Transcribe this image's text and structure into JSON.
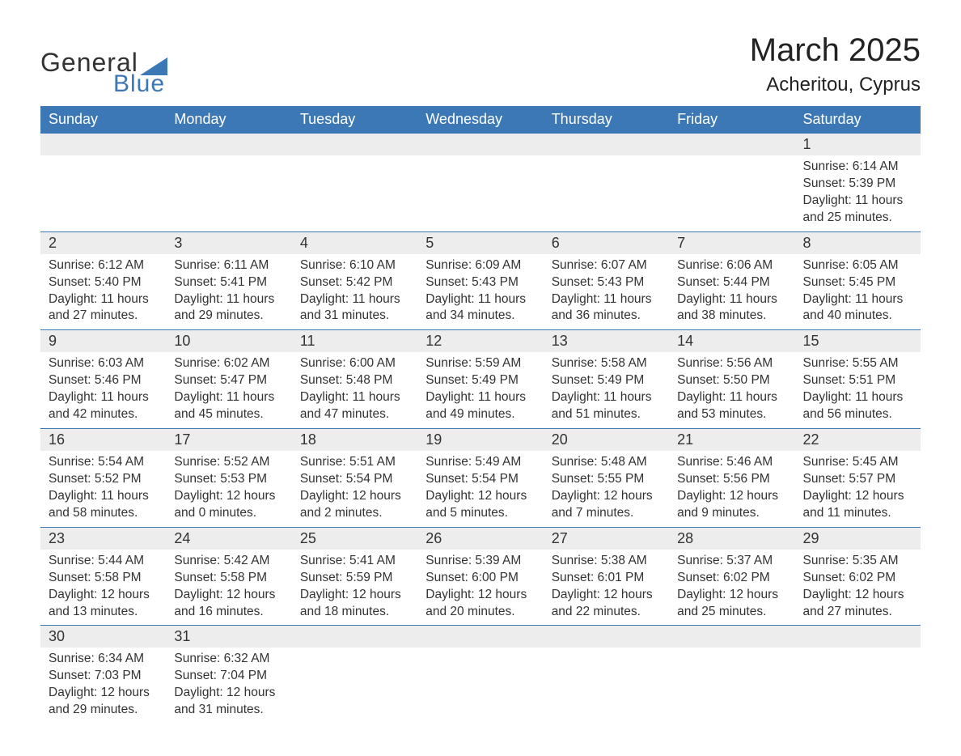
{
  "logo": {
    "word1": "General",
    "word2": "Blue"
  },
  "title": "March 2025",
  "location": "Acheritou, Cyprus",
  "colors": {
    "header_bg": "#3d78b6",
    "header_text": "#ffffff",
    "row_border": "#3d78b6",
    "daynum_bg": "#ededed",
    "text": "#333333",
    "logo_blue": "#3d78b6",
    "background": "#ffffff"
  },
  "typography": {
    "title_fontsize": 40,
    "location_fontsize": 24,
    "header_fontsize": 18,
    "daynum_fontsize": 18,
    "body_fontsize": 15.5,
    "logo_fontsize": 32
  },
  "weekday_headers": [
    "Sunday",
    "Monday",
    "Tuesday",
    "Wednesday",
    "Thursday",
    "Friday",
    "Saturday"
  ],
  "weeks": [
    [
      {
        "blank": true
      },
      {
        "blank": true
      },
      {
        "blank": true
      },
      {
        "blank": true
      },
      {
        "blank": true
      },
      {
        "blank": true
      },
      {
        "day": "1",
        "sunrise": "Sunrise: 6:14 AM",
        "sunset": "Sunset: 5:39 PM",
        "daylight1": "Daylight: 11 hours",
        "daylight2": "and 25 minutes."
      }
    ],
    [
      {
        "day": "2",
        "sunrise": "Sunrise: 6:12 AM",
        "sunset": "Sunset: 5:40 PM",
        "daylight1": "Daylight: 11 hours",
        "daylight2": "and 27 minutes."
      },
      {
        "day": "3",
        "sunrise": "Sunrise: 6:11 AM",
        "sunset": "Sunset: 5:41 PM",
        "daylight1": "Daylight: 11 hours",
        "daylight2": "and 29 minutes."
      },
      {
        "day": "4",
        "sunrise": "Sunrise: 6:10 AM",
        "sunset": "Sunset: 5:42 PM",
        "daylight1": "Daylight: 11 hours",
        "daylight2": "and 31 minutes."
      },
      {
        "day": "5",
        "sunrise": "Sunrise: 6:09 AM",
        "sunset": "Sunset: 5:43 PM",
        "daylight1": "Daylight: 11 hours",
        "daylight2": "and 34 minutes."
      },
      {
        "day": "6",
        "sunrise": "Sunrise: 6:07 AM",
        "sunset": "Sunset: 5:43 PM",
        "daylight1": "Daylight: 11 hours",
        "daylight2": "and 36 minutes."
      },
      {
        "day": "7",
        "sunrise": "Sunrise: 6:06 AM",
        "sunset": "Sunset: 5:44 PM",
        "daylight1": "Daylight: 11 hours",
        "daylight2": "and 38 minutes."
      },
      {
        "day": "8",
        "sunrise": "Sunrise: 6:05 AM",
        "sunset": "Sunset: 5:45 PM",
        "daylight1": "Daylight: 11 hours",
        "daylight2": "and 40 minutes."
      }
    ],
    [
      {
        "day": "9",
        "sunrise": "Sunrise: 6:03 AM",
        "sunset": "Sunset: 5:46 PM",
        "daylight1": "Daylight: 11 hours",
        "daylight2": "and 42 minutes."
      },
      {
        "day": "10",
        "sunrise": "Sunrise: 6:02 AM",
        "sunset": "Sunset: 5:47 PM",
        "daylight1": "Daylight: 11 hours",
        "daylight2": "and 45 minutes."
      },
      {
        "day": "11",
        "sunrise": "Sunrise: 6:00 AM",
        "sunset": "Sunset: 5:48 PM",
        "daylight1": "Daylight: 11 hours",
        "daylight2": "and 47 minutes."
      },
      {
        "day": "12",
        "sunrise": "Sunrise: 5:59 AM",
        "sunset": "Sunset: 5:49 PM",
        "daylight1": "Daylight: 11 hours",
        "daylight2": "and 49 minutes."
      },
      {
        "day": "13",
        "sunrise": "Sunrise: 5:58 AM",
        "sunset": "Sunset: 5:49 PM",
        "daylight1": "Daylight: 11 hours",
        "daylight2": "and 51 minutes."
      },
      {
        "day": "14",
        "sunrise": "Sunrise: 5:56 AM",
        "sunset": "Sunset: 5:50 PM",
        "daylight1": "Daylight: 11 hours",
        "daylight2": "and 53 minutes."
      },
      {
        "day": "15",
        "sunrise": "Sunrise: 5:55 AM",
        "sunset": "Sunset: 5:51 PM",
        "daylight1": "Daylight: 11 hours",
        "daylight2": "and 56 minutes."
      }
    ],
    [
      {
        "day": "16",
        "sunrise": "Sunrise: 5:54 AM",
        "sunset": "Sunset: 5:52 PM",
        "daylight1": "Daylight: 11 hours",
        "daylight2": "and 58 minutes."
      },
      {
        "day": "17",
        "sunrise": "Sunrise: 5:52 AM",
        "sunset": "Sunset: 5:53 PM",
        "daylight1": "Daylight: 12 hours",
        "daylight2": "and 0 minutes."
      },
      {
        "day": "18",
        "sunrise": "Sunrise: 5:51 AM",
        "sunset": "Sunset: 5:54 PM",
        "daylight1": "Daylight: 12 hours",
        "daylight2": "and 2 minutes."
      },
      {
        "day": "19",
        "sunrise": "Sunrise: 5:49 AM",
        "sunset": "Sunset: 5:54 PM",
        "daylight1": "Daylight: 12 hours",
        "daylight2": "and 5 minutes."
      },
      {
        "day": "20",
        "sunrise": "Sunrise: 5:48 AM",
        "sunset": "Sunset: 5:55 PM",
        "daylight1": "Daylight: 12 hours",
        "daylight2": "and 7 minutes."
      },
      {
        "day": "21",
        "sunrise": "Sunrise: 5:46 AM",
        "sunset": "Sunset: 5:56 PM",
        "daylight1": "Daylight: 12 hours",
        "daylight2": "and 9 minutes."
      },
      {
        "day": "22",
        "sunrise": "Sunrise: 5:45 AM",
        "sunset": "Sunset: 5:57 PM",
        "daylight1": "Daylight: 12 hours",
        "daylight2": "and 11 minutes."
      }
    ],
    [
      {
        "day": "23",
        "sunrise": "Sunrise: 5:44 AM",
        "sunset": "Sunset: 5:58 PM",
        "daylight1": "Daylight: 12 hours",
        "daylight2": "and 13 minutes."
      },
      {
        "day": "24",
        "sunrise": "Sunrise: 5:42 AM",
        "sunset": "Sunset: 5:58 PM",
        "daylight1": "Daylight: 12 hours",
        "daylight2": "and 16 minutes."
      },
      {
        "day": "25",
        "sunrise": "Sunrise: 5:41 AM",
        "sunset": "Sunset: 5:59 PM",
        "daylight1": "Daylight: 12 hours",
        "daylight2": "and 18 minutes."
      },
      {
        "day": "26",
        "sunrise": "Sunrise: 5:39 AM",
        "sunset": "Sunset: 6:00 PM",
        "daylight1": "Daylight: 12 hours",
        "daylight2": "and 20 minutes."
      },
      {
        "day": "27",
        "sunrise": "Sunrise: 5:38 AM",
        "sunset": "Sunset: 6:01 PM",
        "daylight1": "Daylight: 12 hours",
        "daylight2": "and 22 minutes."
      },
      {
        "day": "28",
        "sunrise": "Sunrise: 5:37 AM",
        "sunset": "Sunset: 6:02 PM",
        "daylight1": "Daylight: 12 hours",
        "daylight2": "and 25 minutes."
      },
      {
        "day": "29",
        "sunrise": "Sunrise: 5:35 AM",
        "sunset": "Sunset: 6:02 PM",
        "daylight1": "Daylight: 12 hours",
        "daylight2": "and 27 minutes."
      }
    ],
    [
      {
        "day": "30",
        "sunrise": "Sunrise: 6:34 AM",
        "sunset": "Sunset: 7:03 PM",
        "daylight1": "Daylight: 12 hours",
        "daylight2": "and 29 minutes."
      },
      {
        "day": "31",
        "sunrise": "Sunrise: 6:32 AM",
        "sunset": "Sunset: 7:04 PM",
        "daylight1": "Daylight: 12 hours",
        "daylight2": "and 31 minutes."
      },
      {
        "blank": true
      },
      {
        "blank": true
      },
      {
        "blank": true
      },
      {
        "blank": true
      },
      {
        "blank": true
      }
    ]
  ]
}
